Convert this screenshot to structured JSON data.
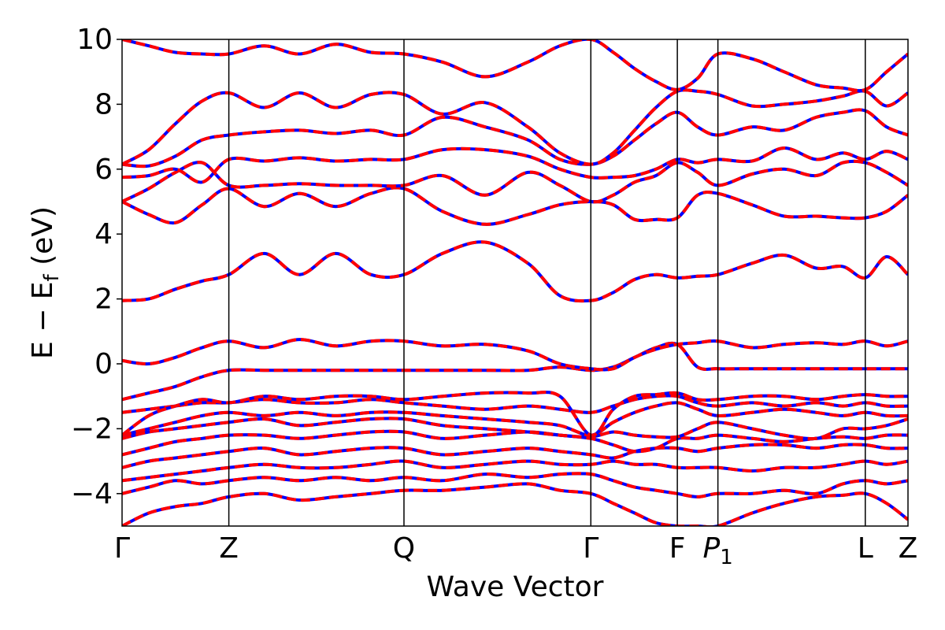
{
  "chart_data": {
    "type": "line",
    "xlabel": "Wave Vector",
    "ylabel": "E − E_f (eV)",
    "ylabel_main": "E − E",
    "ylabel_sub": "f",
    "ylabel_unit": " (eV)",
    "ylim": [
      -5,
      10
    ],
    "yticks": [
      -4,
      -2,
      0,
      2,
      4,
      6,
      8,
      10
    ],
    "ytick_labels": [
      "−4",
      "−2",
      "0",
      "2",
      "4",
      "6",
      "8",
      "10"
    ],
    "kpoints": [
      {
        "label": "Γ",
        "sub": "",
        "position": 0.0
      },
      {
        "label": "Z",
        "sub": "",
        "position": 1.0
      },
      {
        "label": "Q",
        "sub": "",
        "position": 2.64
      },
      {
        "label": "Γ",
        "sub": "",
        "position": 4.39
      },
      {
        "label": "F",
        "sub": "",
        "position": 5.2
      },
      {
        "label": "P",
        "sub": "1",
        "position": 5.58
      },
      {
        "label": "L",
        "sub": "",
        "position": 6.96
      },
      {
        "label": "Z",
        "sub": "",
        "position": 7.36
      }
    ],
    "line_styles": [
      {
        "name": "",
        "color": "#0000ff",
        "style": "solid"
      },
      {
        "name": "",
        "color": "#ff0000",
        "style": "dashed"
      }
    ],
    "x": [
      0,
      0.25,
      0.5,
      0.75,
      1.0,
      1.33,
      1.66,
      2.0,
      2.33,
      2.64,
      3.0,
      3.4,
      3.8,
      4.1,
      4.39,
      4.6,
      4.8,
      5.0,
      5.2,
      5.39,
      5.58,
      5.9,
      6.2,
      6.5,
      6.75,
      6.96,
      7.16,
      7.36
    ],
    "bands": [
      [
        -5.0,
        -4.6,
        -4.4,
        -4.3,
        -4.1,
        -4.0,
        -4.2,
        -4.1,
        -4.0,
        -3.9,
        -3.9,
        -3.8,
        -3.7,
        -3.9,
        -4.0,
        -4.3,
        -4.6,
        -4.9,
        -5.0,
        -5.0,
        -5.0,
        -4.6,
        -4.3,
        -4.1,
        -4.05,
        -4.0,
        -4.3,
        -4.8
      ],
      [
        -4.0,
        -3.8,
        -3.6,
        -3.7,
        -3.6,
        -3.5,
        -3.6,
        -3.5,
        -3.6,
        -3.5,
        -3.6,
        -3.4,
        -3.5,
        -3.4,
        -3.4,
        -3.6,
        -3.8,
        -3.9,
        -4.0,
        -4.1,
        -4.0,
        -4.0,
        -3.9,
        -4.0,
        -3.7,
        -3.6,
        -3.7,
        -3.6
      ],
      [
        -3.6,
        -3.5,
        -3.4,
        -3.3,
        -3.2,
        -3.1,
        -3.2,
        -3.2,
        -3.1,
        -3.0,
        -3.2,
        -3.1,
        -3.0,
        -3.1,
        -3.1,
        -3.0,
        -3.1,
        -3.1,
        -3.2,
        -3.2,
        -3.2,
        -3.3,
        -3.2,
        -3.2,
        -3.1,
        -3.0,
        -3.1,
        -3.0
      ],
      [
        -3.2,
        -3.0,
        -2.9,
        -2.8,
        -2.7,
        -2.6,
        -2.8,
        -2.7,
        -2.6,
        -2.6,
        -2.8,
        -2.7,
        -2.6,
        -2.7,
        -2.8,
        -2.9,
        -2.7,
        -2.6,
        -2.6,
        -2.7,
        -2.6,
        -2.5,
        -2.5,
        -2.6,
        -2.5,
        -2.5,
        -2.6,
        -2.6
      ],
      [
        -2.8,
        -2.6,
        -2.4,
        -2.3,
        -2.2,
        -2.2,
        -2.3,
        -2.2,
        -2.1,
        -2.1,
        -2.3,
        -2.2,
        -2.1,
        -2.2,
        -2.3,
        -2.5,
        -2.7,
        -2.6,
        -2.3,
        -2.3,
        -2.2,
        -2.3,
        -2.4,
        -2.3,
        -2.25,
        -2.3,
        -2.2,
        -2.2
      ],
      [
        -2.3,
        -2.1,
        -2.0,
        -1.9,
        -1.8,
        -1.7,
        -1.9,
        -1.8,
        -1.7,
        -1.7,
        -1.9,
        -2.0,
        -2.1,
        -2.2,
        -2.25,
        -2.1,
        -2.2,
        -2.25,
        -2.25,
        -2.0,
        -1.8,
        -2.0,
        -2.2,
        -2.3,
        -2.0,
        -2.0,
        -1.9,
        -1.7
      ],
      [
        -2.2,
        -2.0,
        -1.8,
        -1.6,
        -1.5,
        -1.6,
        -1.5,
        -1.6,
        -1.5,
        -1.5,
        -1.6,
        -1.7,
        -1.8,
        -1.9,
        -2.2,
        -1.8,
        -1.5,
        -1.3,
        -1.2,
        -1.4,
        -1.6,
        -1.5,
        -1.4,
        -1.5,
        -1.6,
        -1.5,
        -1.6,
        -1.6
      ],
      [
        -1.5,
        -1.4,
        -1.3,
        -1.2,
        -1.2,
        -1.1,
        -1.2,
        -1.2,
        -1.1,
        -1.2,
        -1.3,
        -1.4,
        -1.3,
        -1.4,
        -1.5,
        -1.3,
        -1.1,
        -1.0,
        -1.0,
        -1.2,
        -1.3,
        -1.2,
        -1.3,
        -1.2,
        -1.3,
        -1.2,
        -1.3,
        -1.3
      ],
      [
        -2.2,
        -1.6,
        -1.3,
        -1.1,
        -1.2,
        -1.0,
        -1.1,
        -1.0,
        -1.0,
        -1.1,
        -1.0,
        -0.9,
        -0.9,
        -1.0,
        -2.2,
        -1.4,
        -1.0,
        -0.95,
        -0.9,
        -1.1,
        -1.1,
        -1.0,
        -1.0,
        -1.1,
        -1.0,
        -0.95,
        -1.0,
        -1.0
      ],
      [
        -1.1,
        -0.9,
        -0.7,
        -0.4,
        -0.2,
        -0.2,
        -0.2,
        -0.2,
        -0.2,
        -0.2,
        -0.2,
        -0.2,
        -0.2,
        -0.1,
        -0.2,
        -0.1,
        0.2,
        0.5,
        0.6,
        -0.1,
        -0.15,
        -0.15,
        -0.15,
        -0.15,
        -0.15,
        -0.15,
        -0.15,
        -0.15
      ],
      [
        0.1,
        0.0,
        0.2,
        0.5,
        0.7,
        0.5,
        0.75,
        0.55,
        0.7,
        0.7,
        0.55,
        0.6,
        0.4,
        0.0,
        -0.15,
        -0.15,
        0.2,
        0.45,
        0.6,
        0.65,
        0.7,
        0.5,
        0.6,
        0.65,
        0.6,
        0.7,
        0.55,
        0.7
      ],
      [
        1.95,
        2.0,
        2.3,
        2.55,
        2.75,
        3.4,
        2.75,
        3.4,
        2.75,
        2.75,
        3.4,
        3.75,
        3.1,
        2.1,
        1.95,
        2.2,
        2.6,
        2.75,
        2.65,
        2.7,
        2.75,
        3.1,
        3.35,
        2.95,
        3.0,
        2.65,
        3.3,
        2.75
      ],
      [
        5.0,
        4.6,
        4.35,
        4.9,
        5.4,
        4.85,
        5.25,
        4.85,
        5.25,
        5.4,
        4.7,
        4.3,
        4.6,
        4.9,
        5.0,
        4.9,
        4.45,
        4.45,
        4.5,
        5.2,
        5.25,
        4.9,
        4.55,
        4.55,
        4.5,
        4.5,
        4.7,
        5.2
      ],
      [
        5.0,
        5.4,
        5.9,
        6.2,
        5.5,
        5.5,
        5.55,
        5.5,
        5.5,
        5.5,
        5.8,
        5.2,
        5.9,
        5.5,
        5.0,
        5.2,
        5.6,
        5.8,
        6.2,
        5.9,
        5.5,
        5.85,
        6.0,
        5.8,
        6.2,
        6.2,
        5.9,
        5.5
      ],
      [
        5.75,
        5.8,
        6.0,
        5.6,
        6.3,
        6.25,
        6.35,
        6.25,
        6.3,
        6.3,
        6.6,
        6.6,
        6.4,
        6.0,
        5.75,
        5.75,
        5.8,
        6.0,
        6.3,
        6.2,
        6.3,
        6.25,
        6.65,
        6.3,
        6.5,
        6.3,
        6.55,
        6.3
      ],
      [
        6.15,
        6.1,
        6.4,
        6.9,
        7.05,
        7.15,
        7.2,
        7.1,
        7.2,
        7.05,
        7.6,
        7.3,
        6.9,
        6.3,
        6.15,
        6.4,
        6.9,
        7.4,
        7.75,
        7.3,
        7.05,
        7.3,
        7.2,
        7.6,
        7.75,
        7.8,
        7.3,
        7.05
      ],
      [
        6.15,
        6.6,
        7.4,
        8.1,
        8.35,
        7.9,
        8.35,
        7.9,
        8.3,
        8.3,
        7.7,
        8.05,
        7.3,
        6.5,
        6.15,
        6.5,
        7.2,
        7.9,
        8.4,
        8.4,
        8.3,
        7.95,
        8.0,
        8.1,
        8.25,
        8.4,
        7.95,
        8.35
      ],
      [
        10.0,
        9.8,
        9.6,
        9.55,
        9.55,
        9.8,
        9.55,
        9.85,
        9.6,
        9.55,
        9.3,
        8.85,
        9.3,
        9.8,
        10.0,
        9.6,
        9.1,
        8.7,
        8.45,
        8.8,
        9.55,
        9.4,
        9.0,
        8.6,
        8.5,
        8.45,
        9.0,
        9.55
      ]
    ]
  }
}
